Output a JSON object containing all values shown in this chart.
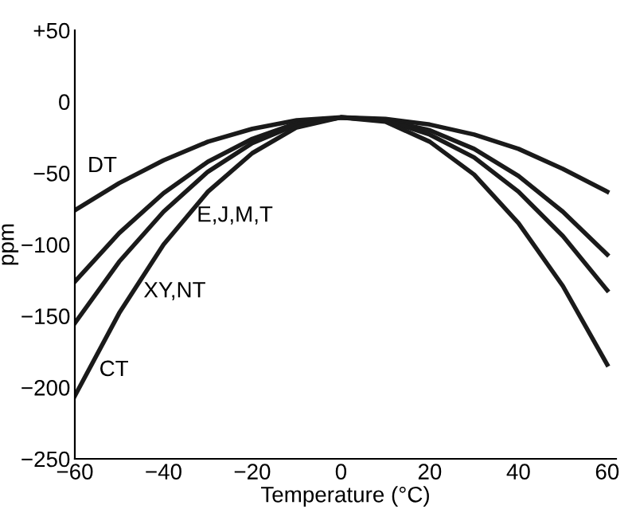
{
  "chart_data": {
    "type": "line",
    "xlabel": "Temperature (°C)",
    "ylabel": "ppm",
    "x": [
      -60,
      -50,
      -40,
      -30,
      -20,
      -10,
      0,
      10,
      20,
      30,
      40,
      50,
      60
    ],
    "series": [
      {
        "color": "#1a1a1a",
        "values": [
          -76,
          -57,
          -41,
          -28,
          -19,
          -13,
          -11,
          -12,
          -16,
          -23,
          -33,
          -47,
          -63
        ]
      },
      {
        "color": "#1a1a1a",
        "values": [
          -126,
          -92,
          -64,
          -42,
          -26,
          -15,
          -11,
          -13,
          -20,
          -33,
          -52,
          -77,
          -107
        ]
      },
      {
        "color": "#1a1a1a",
        "values": [
          -155,
          -112,
          -77,
          -49,
          -29,
          -16,
          -11,
          -13,
          -23,
          -39,
          -63,
          -94,
          -132
        ]
      },
      {
        "color": "#1a1a1a",
        "values": [
          -206,
          -148,
          -100,
          -63,
          -36,
          -18,
          -11,
          -14,
          -28,
          -51,
          -85,
          -129,
          -184
        ]
      }
    ],
    "annotations": [
      {
        "text": "DT",
        "x": -48,
        "y": -53
      },
      {
        "text": "E,J,M,T",
        "x": -35,
        "y": -80
      },
      {
        "text": "XY,NT",
        "x": -47,
        "y": -133
      },
      {
        "text": "CT",
        "x": -57,
        "y": -188
      }
    ],
    "xlim": [
      -60,
      62
    ],
    "xticks": [
      {
        "value": -60,
        "label": "−60"
      },
      {
        "value": -40,
        "label": "−40"
      },
      {
        "value": -20,
        "label": "−20"
      },
      0,
      20,
      40,
      60
    ],
    "ylim": [
      -250,
      50
    ],
    "yticks": [
      {
        "value": -250,
        "label": "−250"
      },
      {
        "value": -200,
        "label": "−200"
      },
      {
        "value": -150,
        "label": "−150"
      },
      {
        "value": -100,
        "label": "−100"
      },
      {
        "value": -50,
        "label": "−50"
      },
      0,
      {
        "value": 50,
        "label": "+50"
      }
    ],
    "grid": false,
    "legend": false,
    "marker": "none",
    "line_style": "solid"
  }
}
